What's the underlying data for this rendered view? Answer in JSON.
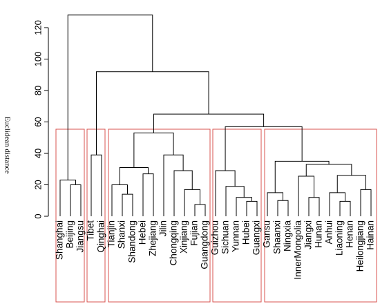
{
  "chart_data": {
    "type": "dendrogram",
    "ylabel": "Euclidean distance",
    "ylim": [
      0,
      120
    ],
    "yticks": [
      0,
      20,
      40,
      60,
      80,
      100,
      120
    ],
    "color": "#000000",
    "box_color": "#d9534f",
    "tree": {
      "height": 128,
      "children": [
        {
          "height": 23,
          "children": [
            {
              "label": "Shanghai"
            },
            {
              "height": 20,
              "children": [
                {
                  "label": "Beijing"
                },
                {
                  "label": "Jiangsu"
                }
              ]
            }
          ]
        },
        {
          "height": 92,
          "children": [
            {
              "height": 39,
              "children": [
                {
                  "label": "Tibet"
                },
                {
                  "label": "Qinghai"
                }
              ]
            },
            {
              "height": 65,
              "children": [
                {
                  "height": 53,
                  "children": [
                    {
                      "height": 31,
                      "children": [
                        {
                          "height": 20,
                          "children": [
                            {
                              "label": "Tianjin"
                            },
                            {
                              "height": 14,
                              "children": [
                                {
                                  "label": "Shanxi"
                                },
                                {
                                  "label": "Shandong"
                                }
                              ]
                            }
                          ]
                        },
                        {
                          "height": 27,
                          "children": [
                            {
                              "label": "Hebei"
                            },
                            {
                              "label": "Zhejiang"
                            }
                          ]
                        }
                      ]
                    },
                    {
                      "height": 39,
                      "children": [
                        {
                          "label": "Jilin"
                        },
                        {
                          "height": 29,
                          "children": [
                            {
                              "label": "Chongqing"
                            },
                            {
                              "height": 17,
                              "children": [
                                {
                                  "label": "Xinjiang"
                                },
                                {
                                  "height": 7.5,
                                  "children": [
                                    {
                                      "label": "Fujian"
                                    },
                                    {
                                      "label": "Guangdong"
                                    }
                                  ]
                                }
                              ]
                            }
                          ]
                        }
                      ]
                    }
                  ]
                },
                {
                  "height": 57,
                  "children": [
                    {
                      "height": 29,
                      "children": [
                        {
                          "label": "Guizhou"
                        },
                        {
                          "height": 19,
                          "children": [
                            {
                              "label": "Sichuan"
                            },
                            {
                              "height": 12,
                              "children": [
                                {
                                  "label": "Yunnan"
                                },
                                {
                                  "height": 9.5,
                                  "children": [
                                    {
                                      "label": "Hubei"
                                    },
                                    {
                                      "label": "Guangxi"
                                    }
                                  ]
                                }
                              ]
                            }
                          ]
                        }
                      ]
                    },
                    {
                      "height": 35,
                      "children": [
                        {
                          "height": 15,
                          "children": [
                            {
                              "label": "Gansu"
                            },
                            {
                              "height": 10,
                              "children": [
                                {
                                  "label": "Shaanxi"
                                },
                                {
                                  "label": "Ningxia"
                                }
                              ]
                            }
                          ]
                        },
                        {
                          "height": 33,
                          "children": [
                            {
                              "height": 25.5,
                              "children": [
                                {
                                  "label": "InnerMongolia"
                                },
                                {
                                  "height": 12,
                                  "children": [
                                    {
                                      "label": "Jiangxi"
                                    },
                                    {
                                      "label": "Hunan"
                                    }
                                  ]
                                }
                              ]
                            },
                            {
                              "height": 26,
                              "children": [
                                {
                                  "height": 15,
                                  "children": [
                                    {
                                      "label": "Anhui"
                                    },
                                    {
                                      "height": 9.5,
                                      "children": [
                                        {
                                          "label": "Liaoning"
                                        },
                                        {
                                          "label": "Henan"
                                        }
                                      ]
                                    }
                                  ]
                                },
                                {
                                  "height": 17,
                                  "children": [
                                    {
                                      "label": "Heilongjiang"
                                    },
                                    {
                                      "label": "Hainan"
                                    }
                                  ]
                                }
                              ]
                            }
                          ]
                        }
                      ]
                    }
                  ]
                }
              ]
            }
          ]
        }
      ]
    }
  }
}
